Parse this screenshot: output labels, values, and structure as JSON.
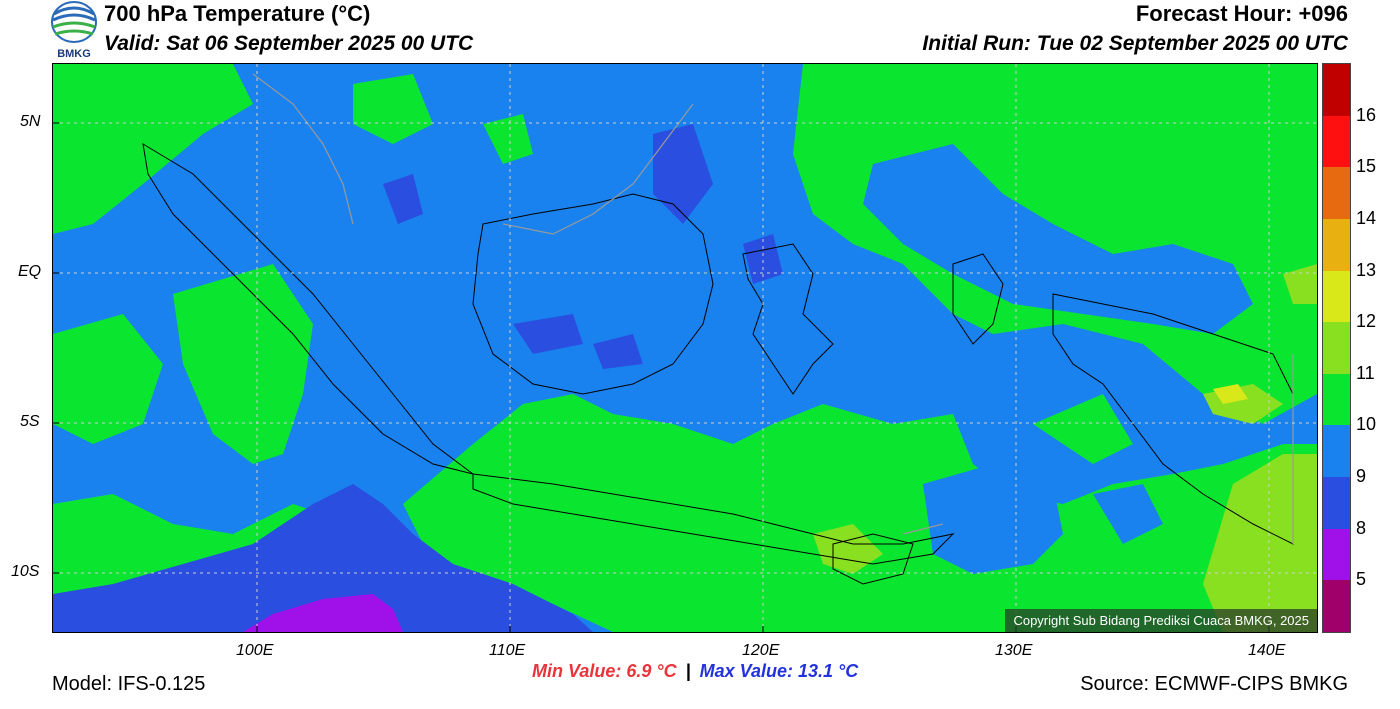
{
  "header": {
    "title": "700 hPa Temperature (°C)",
    "valid": "Valid: Sat 06 September 2025 00 UTC",
    "forecast_hour": "Forecast Hour: +096",
    "initial_run": "Initial Run: Tue 02 September 2025 00 UTC",
    "logo_text": "BMKG"
  },
  "map": {
    "lat_labels": [
      "5N",
      "EQ",
      "5S",
      "10S"
    ],
    "lon_labels": [
      "100E",
      "110E",
      "120E",
      "130E",
      "140E"
    ],
    "copyright": "Copyright Sub Bidang Prediksi Cuaca BMKG, 2025",
    "colors": {
      "c5": "#a0006a",
      "c8": "#a010e8",
      "c9": "#2a4ee0",
      "c10": "#1a82ee",
      "c11": "#0ae630",
      "c12": "#88e020",
      "c13": "#d8e818",
      "c14": "#e8b010",
      "c15": "#e86a10",
      "c16": "#ff1010",
      "c17": "#c00000"
    }
  },
  "colorbar": {
    "labels": [
      "16",
      "15",
      "14",
      "13",
      "12",
      "11",
      "10",
      "9",
      "8",
      "5"
    ],
    "colors": [
      "#c00000",
      "#ff1010",
      "#e86a10",
      "#e8b010",
      "#d8e818",
      "#88e020",
      "#0ae630",
      "#1a82ee",
      "#2a4ee0",
      "#a010e8",
      "#a0006a"
    ]
  },
  "footer": {
    "model": "Model: IFS-0.125",
    "min_value": "Min Value: 6.9 °C",
    "separator": "|",
    "max_value": "Max Value: 13.1 °C",
    "source": "Source: ECMWF-CIPS BMKG"
  }
}
